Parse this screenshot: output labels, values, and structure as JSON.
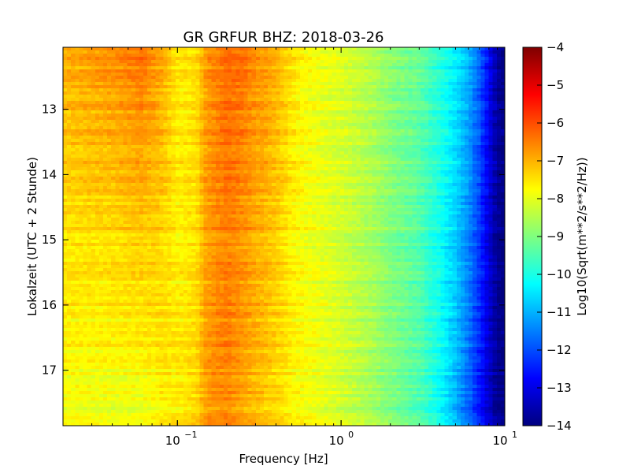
{
  "chart_data": {
    "type": "heatmap",
    "title": "GR GRFUR BHZ: 2018-03-26",
    "xlabel": "Frequency [Hz]",
    "ylabel": "Lokalzeit (UTC + 2 Stunde)",
    "x_scale": "log",
    "xlim": [
      0.02,
      10
    ],
    "ylim": [
      17.85,
      12.05
    ],
    "x_ticks": [
      {
        "value": 0.1,
        "base": "10",
        "exp": "−1"
      },
      {
        "value": 1,
        "base": "10",
        "exp": "0"
      },
      {
        "value": 10,
        "base": "10",
        "exp": "1"
      }
    ],
    "y_ticks": [
      {
        "value": 13,
        "label": "13"
      },
      {
        "value": 14,
        "label": "14"
      },
      {
        "value": 15,
        "label": "15"
      },
      {
        "value": 16,
        "label": "16"
      },
      {
        "value": 17,
        "label": "17"
      }
    ],
    "colorbar": {
      "label": "Log10(Sqrt(m**2/s**2/Hz))",
      "range": [
        -14,
        -4
      ],
      "colormap": [
        "#00007f",
        "#0000ff",
        "#007fff",
        "#00ffff",
        "#7fff7f",
        "#ffff00",
        "#ff7f00",
        "#ff0000",
        "#7f0000"
      ],
      "ticks": [
        {
          "value": -4,
          "label": "−4"
        },
        {
          "value": -5,
          "label": "−5"
        },
        {
          "value": -6,
          "label": "−6"
        },
        {
          "value": -7,
          "label": "−7"
        },
        {
          "value": -8,
          "label": "−8"
        },
        {
          "value": -9,
          "label": "−9"
        },
        {
          "value": -10,
          "label": "−10"
        },
        {
          "value": -11,
          "label": "−11"
        },
        {
          "value": -12,
          "label": "−12"
        },
        {
          "value": -13,
          "label": "−13"
        },
        {
          "value": -14,
          "label": "−14"
        }
      ]
    },
    "spectrum_profile": {
      "freq_hz": [
        0.02,
        0.04,
        0.06,
        0.08,
        0.1,
        0.13,
        0.15,
        0.2,
        0.25,
        0.3,
        0.4,
        0.5,
        0.6,
        0.8,
        1.0,
        1.5,
        2.0,
        3.0,
        4.0,
        5.0,
        6.0,
        7.0,
        8.0,
        9.0,
        10.0
      ],
      "level_top": [
        -7.0,
        -6.7,
        -6.4,
        -6.9,
        -7.6,
        -7.5,
        -6.8,
        -6.3,
        -6.4,
        -6.7,
        -7.0,
        -7.5,
        -7.8,
        -8.0,
        -8.1,
        -8.5,
        -8.9,
        -9.3,
        -9.9,
        -10.4,
        -11.0,
        -11.8,
        -12.8,
        -13.7,
        -14.0
      ],
      "level_bottom": [
        -7.9,
        -8.0,
        -8.0,
        -7.7,
        -7.6,
        -7.4,
        -6.8,
        -6.6,
        -6.9,
        -7.1,
        -7.4,
        -7.7,
        -7.8,
        -8.0,
        -8.2,
        -8.6,
        -9.0,
        -9.5,
        -10.2,
        -11.0,
        -11.8,
        -12.6,
        -13.3,
        -13.9,
        -14.0
      ]
    }
  }
}
